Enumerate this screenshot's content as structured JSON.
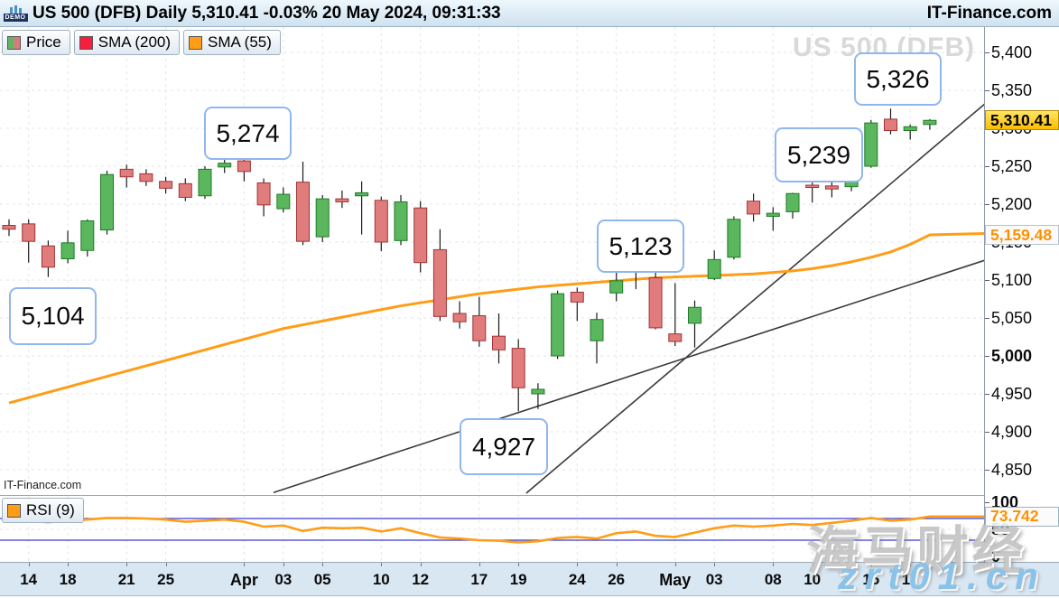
{
  "header": {
    "title": "US 500 (DFB) Daily 5,310.41 -0.03% 20 May 2024, 09:31:33",
    "brand": "IT-Finance.com",
    "demo_badge": "DEMO"
  },
  "legend": {
    "price_label": "Price",
    "sma200_label": "SMA (200)",
    "sma55_label": "SMA (55)",
    "rsi_label": "RSI (9)"
  },
  "watermarks": {
    "symbol": "US 500 (DFB)",
    "site_small": "IT-Finance.com",
    "overlay_cn": "海马财经",
    "overlay_site": "zrt01.cn"
  },
  "colors": {
    "candle_up": "#5bb75e",
    "candle_up_stroke": "#1f7a24",
    "candle_down": "#e07c7c",
    "candle_down_stroke": "#a03434",
    "sma55_line": "#ff9d17",
    "sma200_swatch": "#fb1d3e",
    "rsi_line": "#ff9d17",
    "rsi_levels_line": "#3b3bd1",
    "rsi_oversold_fill": "#cfe4f5",
    "trendline": "#3a3a3a",
    "grid": "#e4e4e4",
    "last_price_bg": "#fcbe00",
    "sma_label_text": "#ff9100"
  },
  "price_axis": {
    "ticks": [
      {
        "label": "5,400",
        "price": 5400,
        "bold": false
      },
      {
        "label": "5,350",
        "price": 5350,
        "bold": false
      },
      {
        "label": "5,300",
        "price": 5300,
        "bold": false
      },
      {
        "label": "5,250",
        "price": 5250,
        "bold": false
      },
      {
        "label": "5,200",
        "price": 5200,
        "bold": false
      },
      {
        "label": "5,150",
        "price": 5150,
        "bold": false
      },
      {
        "label": "5,100",
        "price": 5100,
        "bold": false
      },
      {
        "label": "5,050",
        "price": 5050,
        "bold": false
      },
      {
        "label": "5,000",
        "price": 5000,
        "bold": true
      },
      {
        "label": "4,950",
        "price": 4950,
        "bold": false
      },
      {
        "label": "4,900",
        "price": 4900,
        "bold": false
      },
      {
        "label": "4,850",
        "price": 4850,
        "bold": false
      }
    ],
    "last_price_label": "5,310.41",
    "sma55_label": "5,159.48"
  },
  "rsi_axis": {
    "ticks": [
      {
        "label": "100",
        "value": 100
      },
      {
        "label": "50",
        "value": 50
      },
      {
        "label": "0",
        "value": 0
      }
    ],
    "last_value_label": "73.742"
  },
  "annotations": [
    {
      "text": "5,104"
    },
    {
      "text": "5,274"
    },
    {
      "text": "4,927"
    },
    {
      "text": "5,123"
    },
    {
      "text": "5,239"
    },
    {
      "text": "5,326"
    }
  ],
  "x_axis": {
    "labels": [
      {
        "text": "14",
        "index": 1,
        "month": false
      },
      {
        "text": "18",
        "index": 3,
        "month": false
      },
      {
        "text": "21",
        "index": 6,
        "month": false
      },
      {
        "text": "25",
        "index": 8,
        "month": false
      },
      {
        "text": "Apr",
        "index": 12,
        "month": true
      },
      {
        "text": "03",
        "index": 14,
        "month": false
      },
      {
        "text": "05",
        "index": 16,
        "month": false
      },
      {
        "text": "10",
        "index": 19,
        "month": false
      },
      {
        "text": "12",
        "index": 21,
        "month": false
      },
      {
        "text": "17",
        "index": 24,
        "month": false
      },
      {
        "text": "19",
        "index": 26,
        "month": false
      },
      {
        "text": "24",
        "index": 29,
        "month": false
      },
      {
        "text": "26",
        "index": 31,
        "month": false
      },
      {
        "text": "May",
        "index": 34,
        "month": true
      },
      {
        "text": "03",
        "index": 36,
        "month": false
      },
      {
        "text": "08",
        "index": 39,
        "month": false
      },
      {
        "text": "10",
        "index": 41,
        "month": false
      },
      {
        "text": "15",
        "index": 44,
        "month": false
      },
      {
        "text": "17",
        "index": 46,
        "month": false
      }
    ]
  },
  "chart_data": {
    "type": "candlestick",
    "title": "US 500 (DFB) Daily",
    "last_price": 5310.41,
    "change_pct": -0.03,
    "timestamp": "20 May 2024, 09:31:33",
    "ylim": [
      4817,
      5433
    ],
    "grid": true,
    "dates": [
      "Mar 13",
      "Mar 14",
      "Mar 15",
      "Mar 18",
      "Mar 19",
      "Mar 20",
      "Mar 21",
      "Mar 22",
      "Mar 25",
      "Mar 26",
      "Mar 27",
      "Mar 28",
      "Apr 01",
      "Apr 02",
      "Apr 03",
      "Apr 04",
      "Apr 05",
      "Apr 08",
      "Apr 09",
      "Apr 10",
      "Apr 11",
      "Apr 12",
      "Apr 15",
      "Apr 16",
      "Apr 17",
      "Apr 18",
      "Apr 19",
      "Apr 22",
      "Apr 23",
      "Apr 24",
      "Apr 25",
      "Apr 26",
      "Apr 29",
      "Apr 30",
      "May 01",
      "May 02",
      "May 03",
      "May 06",
      "May 07",
      "May 08",
      "May 09",
      "May 10",
      "May 13",
      "May 14",
      "May 15",
      "May 16",
      "May 17",
      "May 20"
    ],
    "ohlc": [
      [
        5172,
        5180,
        5158,
        5167
      ],
      [
        5174,
        5180,
        5123,
        5151
      ],
      [
        5145,
        5152,
        5104,
        5117
      ],
      [
        5128,
        5165,
        5122,
        5149
      ],
      [
        5139,
        5180,
        5131,
        5178
      ],
      [
        5166,
        5244,
        5160,
        5239
      ],
      [
        5246,
        5252,
        5222,
        5236
      ],
      [
        5240,
        5246,
        5224,
        5230
      ],
      [
        5230,
        5236,
        5214,
        5221
      ],
      [
        5227,
        5234,
        5204,
        5209
      ],
      [
        5211,
        5250,
        5207,
        5246
      ],
      [
        5249,
        5262,
        5241,
        5254
      ],
      [
        5257,
        5274,
        5230,
        5243
      ],
      [
        5228,
        5234,
        5184,
        5199
      ],
      [
        5194,
        5222,
        5189,
        5213
      ],
      [
        5229,
        5256,
        5146,
        5151
      ],
      [
        5157,
        5212,
        5150,
        5207
      ],
      [
        5207,
        5218,
        5195,
        5203
      ],
      [
        5211,
        5230,
        5160,
        5215
      ],
      [
        5205,
        5210,
        5138,
        5150
      ],
      [
        5152,
        5212,
        5146,
        5203
      ],
      [
        5195,
        5204,
        5110,
        5123
      ],
      [
        5140,
        5167,
        5046,
        5052
      ],
      [
        5056,
        5072,
        5036,
        5045
      ],
      [
        5053,
        5078,
        5012,
        5020
      ],
      [
        5026,
        5056,
        4990,
        5008
      ],
      [
        5010,
        5022,
        4927,
        4958
      ],
      [
        4950,
        4964,
        4930,
        4956
      ],
      [
        5000,
        5086,
        4996,
        5082
      ],
      [
        5084,
        5090,
        5046,
        5071
      ],
      [
        5020,
        5057,
        4990,
        5048
      ],
      [
        5083,
        5114,
        5072,
        5099
      ],
      [
        5113,
        5123,
        5088,
        5116
      ],
      [
        5103,
        5110,
        5035,
        5037
      ],
      [
        5029,
        5096,
        5013,
        5019
      ],
      [
        5043,
        5073,
        5011,
        5064
      ],
      [
        5102,
        5139,
        5100,
        5127
      ],
      [
        5130,
        5184,
        5127,
        5180
      ],
      [
        5204,
        5214,
        5177,
        5187
      ],
      [
        5184,
        5196,
        5165,
        5188
      ],
      [
        5190,
        5215,
        5181,
        5214
      ],
      [
        5225,
        5239,
        5202,
        5222
      ],
      [
        5224,
        5237,
        5209,
        5220
      ],
      [
        5223,
        5250,
        5217,
        5246
      ],
      [
        5250,
        5311,
        5248,
        5307
      ],
      [
        5312,
        5326,
        5292,
        5297
      ],
      [
        5297,
        5305,
        5285,
        5302
      ],
      [
        5305,
        5312,
        5298,
        5310.41
      ]
    ],
    "swing_labels": [
      {
        "text": "5,104",
        "price": 5104,
        "index": 2
      },
      {
        "text": "5,274",
        "price": 5274,
        "index": 12
      },
      {
        "text": "4,927",
        "price": 4927,
        "index": 26
      },
      {
        "text": "5,123",
        "price": 5123,
        "index": 32
      },
      {
        "text": "5,239",
        "price": 5239,
        "index": 41
      },
      {
        "text": "5,326",
        "price": 5326,
        "index": 45
      }
    ],
    "sma55": [
      4938,
      4945,
      4952,
      4959,
      4966,
      4973,
      4980,
      4987,
      4994,
      5001,
      5008,
      5015,
      5022,
      5029,
      5036,
      5041,
      5046,
      5051,
      5056,
      5061,
      5066,
      5070,
      5074,
      5078,
      5082,
      5085,
      5088,
      5091,
      5093,
      5095,
      5097,
      5099,
      5101,
      5103,
      5104,
      5105,
      5106,
      5107,
      5108,
      5110,
      5112,
      5115,
      5119,
      5124,
      5130,
      5137,
      5147,
      5159.48
    ],
    "sma55_last": 5159.48,
    "rsi9": [
      69,
      66,
      63,
      66,
      68,
      71,
      71,
      70,
      68,
      64,
      66,
      68,
      64,
      55,
      57,
      47,
      53,
      52,
      53,
      46,
      52,
      43,
      35,
      33,
      30,
      29,
      26,
      28,
      34,
      36,
      33,
      43,
      46,
      38,
      36,
      44,
      52,
      57,
      55,
      57,
      60,
      58,
      62,
      66,
      71,
      66,
      68,
      73.742
    ],
    "rsi9_last": 73.742,
    "rsi_levels": [
      70,
      30
    ],
    "rsi_range": [
      0,
      100
    ],
    "trendlines": [
      {
        "x1_index": 13.5,
        "y1_price": 4820,
        "x2_index": 49.8,
        "y2_price": 5126
      },
      {
        "x1_index": 26.4,
        "y1_price": 4819,
        "x2_index": 49.8,
        "y2_price": 5332
      }
    ]
  }
}
